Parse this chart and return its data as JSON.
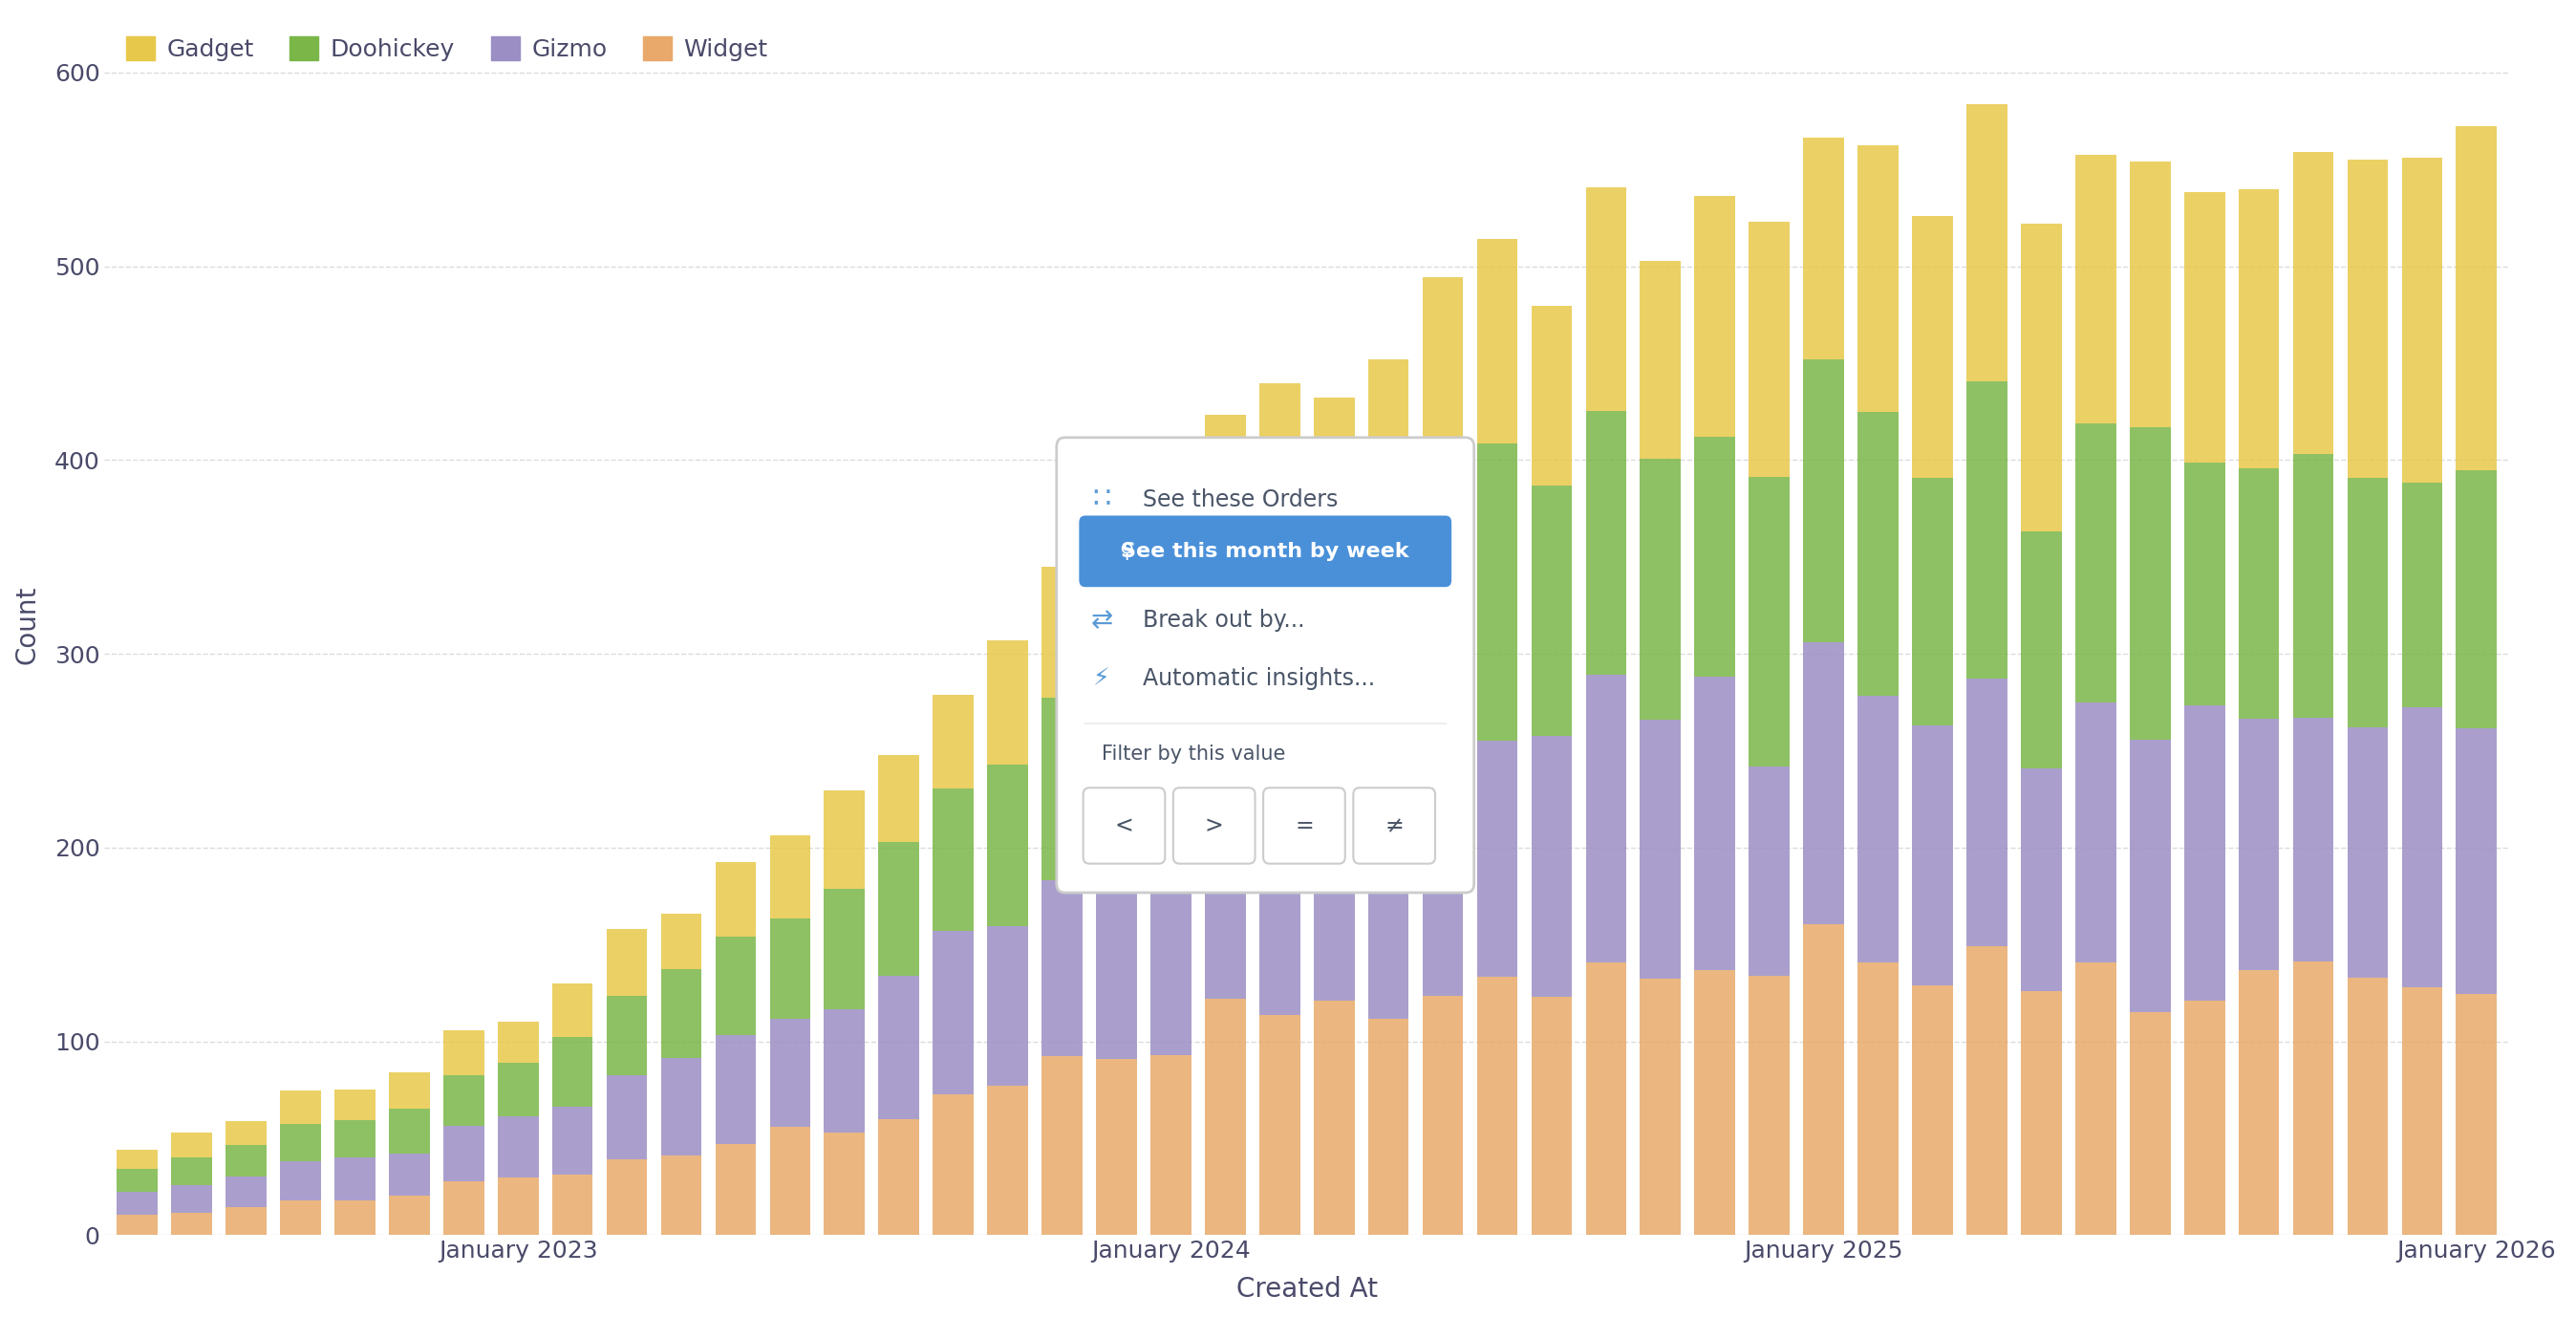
{
  "title": "",
  "xlabel": "Created At",
  "ylabel": "Count",
  "background_color": "#ffffff",
  "grid_color": "#cccccc",
  "text_color": "#4a4a6a",
  "legend_labels": [
    "Gadget",
    "Doohickey",
    "Gizmo",
    "Widget"
  ],
  "colors": {
    "Gadget": "#e8c84a",
    "Doohickey": "#7ab648",
    "Gizmo": "#9b8ec4",
    "Widget": "#e8a96a"
  },
  "ylim": [
    0,
    630
  ],
  "yticks": [
    0,
    100,
    200,
    300,
    400,
    500,
    600
  ],
  "popup": {
    "bg_color": "#ffffff",
    "border_color": "#dddddd",
    "title_text": "See these Orders",
    "zoom_text": "See this month by week",
    "zoom_bg": "#4a90d9",
    "zoom_text_color": "#ffffff",
    "breakout_text": "Break out by...",
    "insights_text": "Automatic insights...",
    "filter_text": "Filter by this value",
    "button_texts": [
      "<",
      ">",
      "=",
      "≠"
    ],
    "text_color": "#4a5568",
    "icon_color": "#5b9bd5"
  }
}
